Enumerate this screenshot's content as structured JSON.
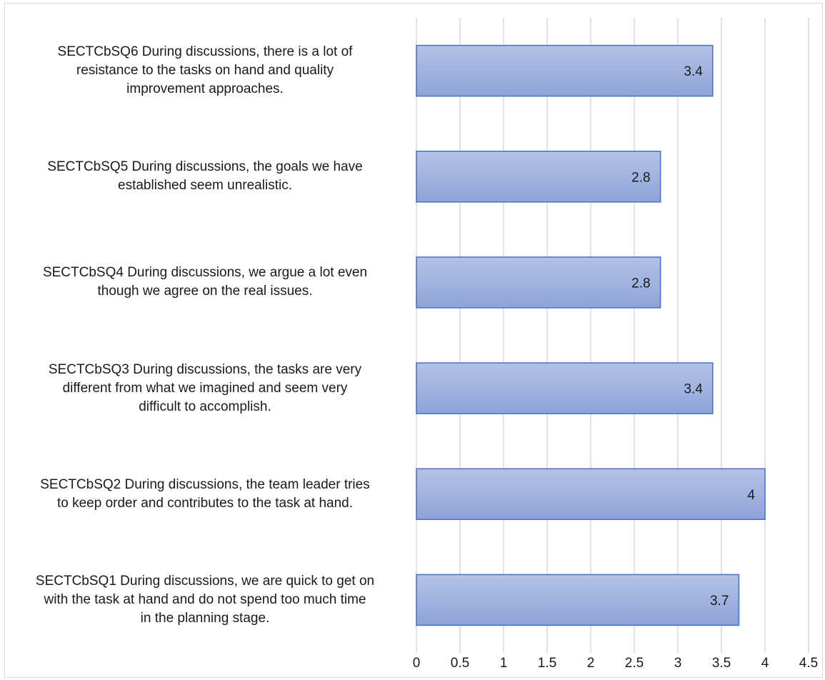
{
  "chart_data": {
    "type": "bar",
    "orientation": "horizontal",
    "categories": [
      "SECTCbSQ1 During discussions, we are quick to get on with the task at hand and do not spend too much time in the planning stage.",
      "SECTCbSQ2 During discussions, the team leader tries to keep order and contributes to the task at hand.",
      "SECTCbSQ3 During discussions, the tasks are very different from what we imagined and seem very difficult to accomplish.",
      "SECTCbSQ4 During discussions, we argue a lot even though we agree on the real issues.",
      "SECTCbSQ5 During discussions, the goals we have established seem unrealistic.",
      "SECTCbSQ6 During discussions, there is a lot of resistance to the tasks on hand and quality improvement approaches."
    ],
    "category_lines": [
      [
        "SECTCbSQ1 During discussions, we are quick to get on",
        "with the task at hand and do not spend too much time",
        "in the planning stage."
      ],
      [
        "SECTCbSQ2 During discussions, the team leader tries",
        "to keep order and contributes to the task at hand."
      ],
      [
        "SECTCbSQ3 During discussions, the tasks are very",
        "different from what we imagined and seem very",
        "difficult to accomplish."
      ],
      [
        "SECTCbSQ4 During discussions, we argue a lot even",
        "though we agree on the real issues."
      ],
      [
        "SECTCbSQ5 During discussions, the goals we have",
        "established seem unrealistic."
      ],
      [
        "SECTCbSQ6 During discussions, there is a lot of",
        "resistance to the tasks on hand and quality",
        "improvement approaches."
      ]
    ],
    "values": [
      3.7,
      4,
      3.4,
      2.8,
      2.8,
      3.4
    ],
    "value_labels": [
      "3.7",
      "4",
      "3.4",
      "2.8",
      "2.8",
      "3.4"
    ],
    "x_ticks": [
      "0",
      "0.5",
      "1",
      "1.5",
      "2",
      "2.5",
      "3",
      "3.5",
      "4",
      "4.5"
    ],
    "xlim": [
      0,
      4.5
    ],
    "grid": true,
    "title": "",
    "xlabel": "",
    "ylabel": "",
    "colors": {
      "bar_fill_top": "#b4c2e6",
      "bar_fill_bottom": "#8ea3d8",
      "bar_stroke": "#4472c4",
      "grid": "#d9d9d9"
    }
  }
}
